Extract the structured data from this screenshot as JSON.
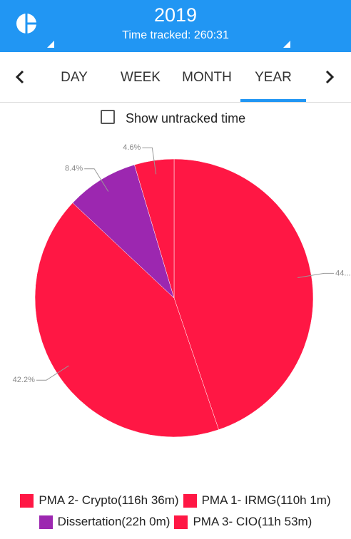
{
  "header": {
    "title": "2019",
    "subtitle": "Time tracked: 260:31"
  },
  "tabs": {
    "items": [
      "DAY",
      "WEEK",
      "MONTH",
      "YEAR"
    ],
    "selected": 3
  },
  "checkbox": {
    "label": "Show untracked time"
  },
  "chart_data": {
    "type": "pie",
    "categories": [
      "PMA 2- Crypto(116h 36m)",
      "PMA 1- IRMG(110h 1m)",
      "Dissertation(22h 0m)",
      "PMA 3- CIO(11h 53m)"
    ],
    "values": [
      44.8,
      42.2,
      8.4,
      4.6
    ],
    "value_labels": [
      "44....",
      "42.2%",
      "8.4%",
      "4.6%"
    ],
    "colors": [
      "#ff1744",
      "#ff1744",
      "#9c27b0",
      "#ff1744"
    ]
  }
}
